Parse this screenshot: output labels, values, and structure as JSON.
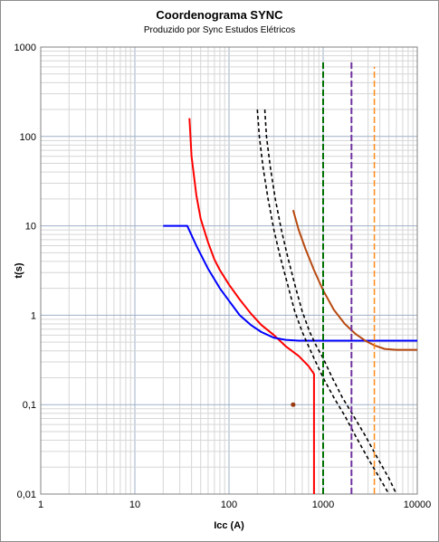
{
  "chart_data": {
    "type": "line",
    "title": "Coordenograma SYNC",
    "subtitle": "Produzido por Sync Estudos Elétricos",
    "xlabel": "Icc (A)",
    "ylabel": "t(s)",
    "xscale": "log",
    "yscale": "log",
    "xlim": [
      1,
      10000
    ],
    "ylim": [
      0.01,
      1000
    ],
    "grid": true,
    "x_tick_labels": [
      "1",
      "10",
      "100",
      "1000",
      "10000"
    ],
    "y_tick_labels": [
      "0,01",
      "0,1",
      "1",
      "10",
      "100",
      "1000"
    ],
    "x_ticks": [
      1,
      10,
      100,
      1000,
      10000
    ],
    "y_ticks": [
      0.01,
      0.1,
      1,
      10,
      100,
      1000
    ],
    "series": [
      {
        "color": "#ff0000",
        "style": "solid",
        "x": [
          38,
          40,
          45,
          50,
          60,
          70,
          80,
          100,
          130,
          170,
          220,
          300,
          400,
          550,
          700,
          800,
          800
        ],
        "y": [
          160,
          60,
          22,
          12,
          6.5,
          4.2,
          3.2,
          2.2,
          1.5,
          1.05,
          0.78,
          0.6,
          0.45,
          0.35,
          0.27,
          0.22,
          0.01
        ]
      },
      {
        "color": "#0000ff",
        "style": "solid",
        "x": [
          20,
          36,
          45,
          60,
          80,
          100,
          130,
          170,
          220,
          300,
          400,
          550,
          700,
          1000,
          10000
        ],
        "y": [
          10,
          10,
          6.0,
          3.3,
          2.0,
          1.45,
          1.0,
          0.78,
          0.65,
          0.56,
          0.53,
          0.52,
          0.52,
          0.52,
          0.52
        ]
      },
      {
        "color": "#000000",
        "style": "dashed",
        "x": [
          200,
          210,
          230,
          260,
          300,
          350,
          420,
          500,
          600,
          700,
          800,
          1000,
          1300,
          1700,
          2200,
          3000,
          4000,
          5000
        ],
        "y": [
          200,
          100,
          45,
          20,
          9,
          4.5,
          2.2,
          1.1,
          0.65,
          0.45,
          0.33,
          0.2,
          0.12,
          0.075,
          0.045,
          0.025,
          0.015,
          0.01
        ]
      },
      {
        "color": "#000000",
        "style": "dashed",
        "x": [
          240,
          250,
          275,
          310,
          360,
          420,
          500,
          600,
          720,
          850,
          1000,
          1250,
          1600,
          2100,
          2800,
          3800,
          5000,
          6000
        ],
        "y": [
          200,
          100,
          45,
          20,
          9,
          4.5,
          2.2,
          1.1,
          0.65,
          0.45,
          0.33,
          0.2,
          0.12,
          0.075,
          0.045,
          0.025,
          0.015,
          0.01
        ]
      },
      {
        "color": "#b84a10",
        "style": "solid",
        "x": [
          480,
          550,
          650,
          800,
          1000,
          1300,
          1700,
          2200,
          2800,
          3500,
          4500,
          6000,
          10000
        ],
        "y": [
          15,
          9,
          5.5,
          3.2,
          1.9,
          1.15,
          0.8,
          0.62,
          0.52,
          0.46,
          0.42,
          0.41,
          0.41
        ]
      },
      {
        "color": "#9a3b14",
        "style": "marker",
        "x": [
          480
        ],
        "y": [
          0.1
        ]
      },
      {
        "color": "#007000",
        "style": "dashed-vertical",
        "x": [
          1000,
          1000
        ],
        "y": [
          0.01,
          700
        ]
      },
      {
        "color": "#7030a0",
        "style": "dashed-vertical",
        "x": [
          2000,
          2000
        ],
        "y": [
          0.01,
          700
        ]
      },
      {
        "color": "#ff8c1a",
        "style": "dashed-vertical",
        "x": [
          3500,
          3500
        ],
        "y": [
          0.01,
          600
        ]
      }
    ]
  }
}
